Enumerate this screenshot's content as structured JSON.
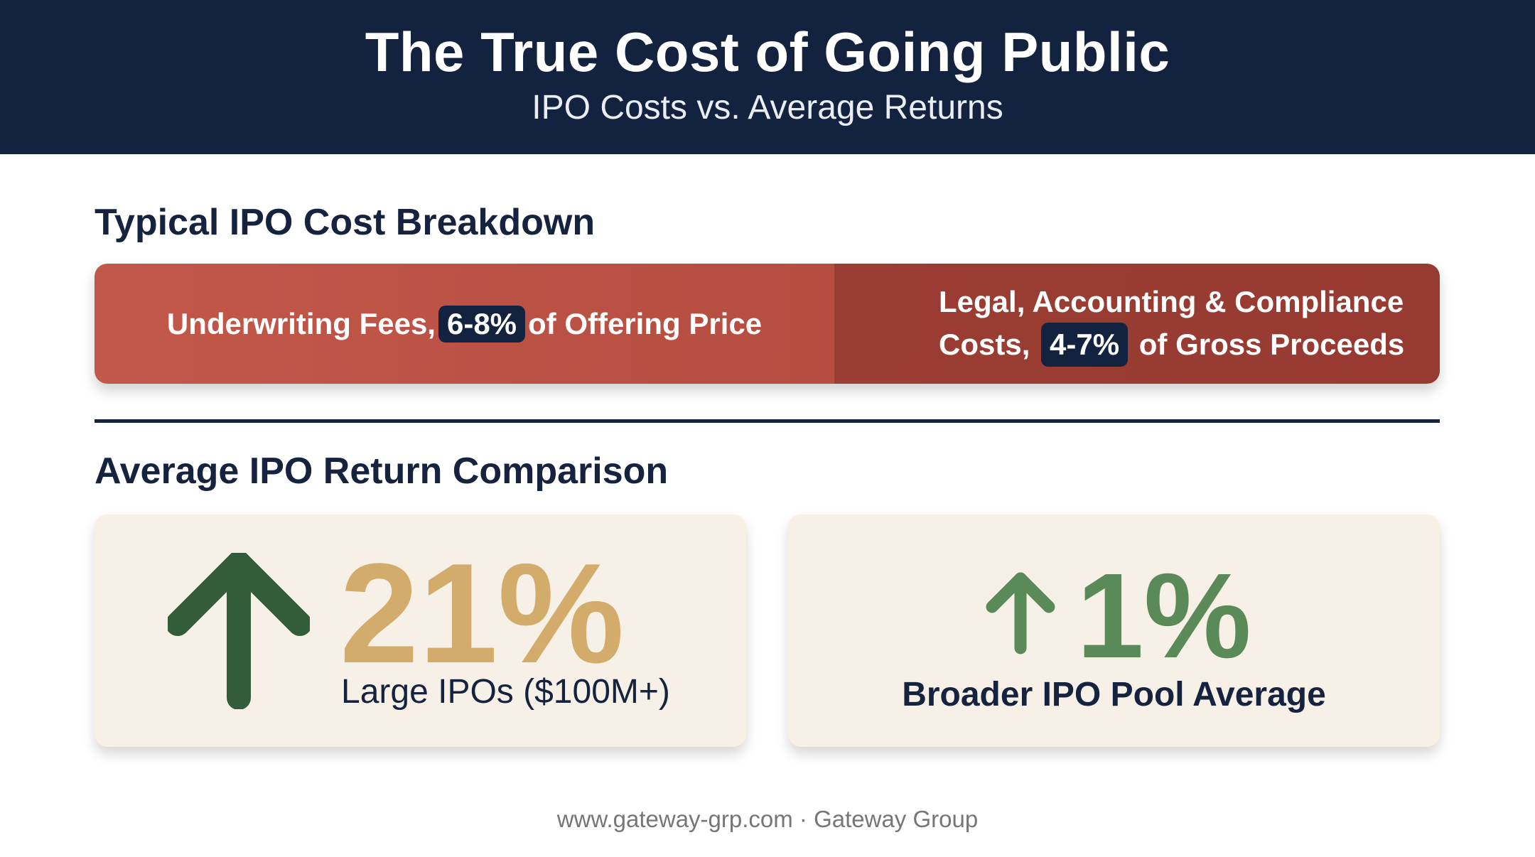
{
  "header": {
    "title": "The True Cost of Going Public",
    "subtitle": "IPO Costs vs. Average Returns"
  },
  "cost_section": {
    "heading": "Typical IPO Cost Breakdown",
    "left": {
      "prefix": "Underwriting Fees,",
      "highlight": "6-8%",
      "suffix": "of Offering Price"
    },
    "right": {
      "line1": "Legal, Accounting & Compliance",
      "prefix": "Costs,",
      "highlight": "4-7%",
      "suffix": "of Gross Proceeds"
    }
  },
  "return_section": {
    "heading": "Average IPO Return Comparison",
    "cards": [
      {
        "value": "21%",
        "label": "Large IPOs ($100M+)",
        "icon": "arrow-up-icon"
      },
      {
        "value": "1%",
        "label": "Broader IPO Pool Average",
        "icon": "arrow-up-icon"
      }
    ]
  },
  "footer": {
    "text": "www.gateway-grp.com · Gateway Group"
  },
  "colors": {
    "header_bg": "#13223f",
    "cost_left": "#c2584a",
    "cost_right": "#9a3d33",
    "card_bg": "#f6f0e6",
    "arrow_dark_green": "#335c39",
    "value_gold": "#d3ac6c",
    "value_green": "#5a8a57"
  }
}
